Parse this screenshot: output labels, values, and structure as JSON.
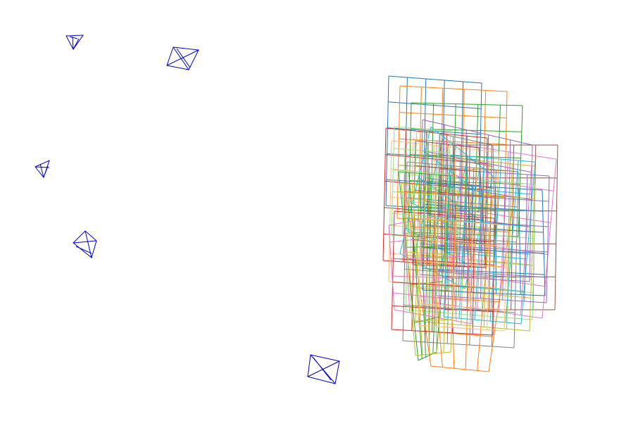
{
  "figure": {
    "description_type": "3d-camera-calibration-view",
    "camera_color": "#0000cc",
    "camera_count": 5,
    "board_count": 24,
    "board_grid_cells": 5,
    "board_colors": [
      "#1f77b4",
      "#ff7f0e",
      "#2ca02c",
      "#d62728",
      "#9467bd",
      "#8c564b",
      "#e377c2",
      "#7f7f7f",
      "#bcbd22",
      "#17becf",
      "#ffbb78",
      "#98df8a"
    ]
  }
}
